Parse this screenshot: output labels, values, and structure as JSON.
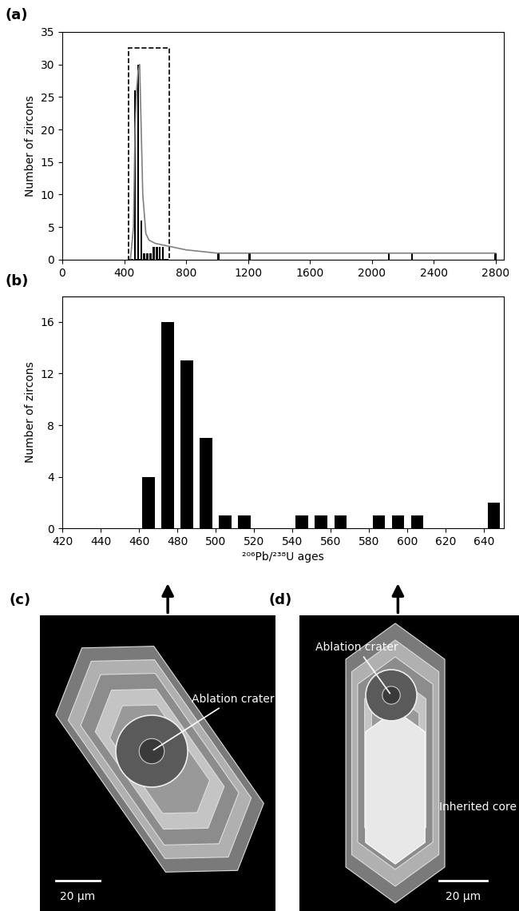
{
  "chart_data": [
    {
      "type": "bar",
      "panel_label": "(a)",
      "ylabel": "Number of zircons",
      "x": [
        470,
        490,
        510,
        530,
        550,
        570,
        590,
        610,
        630,
        650,
        1010,
        1210,
        2110,
        2260,
        2800
      ],
      "values": [
        26,
        30,
        6,
        1,
        1,
        1,
        2,
        2,
        2,
        2,
        1,
        1,
        1,
        1,
        1
      ],
      "color": "#000000",
      "curve": {
        "x": [
          440,
          460,
          470,
          480,
          490,
          500,
          510,
          520,
          540,
          560,
          600,
          700,
          800,
          1000,
          1200,
          1600,
          2000,
          2400,
          2800
        ],
        "values": [
          0,
          5,
          20,
          26,
          29,
          30,
          20,
          10,
          4,
          3,
          2.5,
          2,
          1.5,
          1,
          1,
          1,
          1,
          1,
          1
        ],
        "color": "#808080",
        "line_style": "solid"
      },
      "zoom_box": {
        "x": [
          430,
          690
        ],
        "y": [
          0,
          32.5
        ],
        "line_style": "dashed"
      },
      "xlim": [
        0,
        2850
      ],
      "ylim": [
        0,
        35
      ],
      "xticks": [
        0,
        400,
        800,
        1200,
        1600,
        2000,
        2400,
        2800
      ],
      "yticks": [
        0,
        5,
        10,
        15,
        20,
        25,
        30,
        35
      ]
    },
    {
      "type": "histogram",
      "panel_label": "(b)",
      "ylabel": "Number of zircons",
      "xlabel": "²⁰⁶Pb/²³⁸U ages",
      "bins": [
        460,
        470,
        480,
        490,
        500,
        510,
        520,
        530,
        540,
        550,
        560,
        570,
        580,
        590,
        600,
        610,
        620,
        630,
        640,
        650
      ],
      "counts": [
        4,
        16,
        13,
        7,
        1,
        1,
        0,
        0,
        1,
        1,
        1,
        0,
        1,
        1,
        1,
        0,
        0,
        0,
        2
      ],
      "color": "#000000",
      "xlim": [
        420,
        650
      ],
      "ylim": [
        0,
        18
      ],
      "xticks": [
        420,
        440,
        460,
        480,
        500,
        520,
        540,
        560,
        580,
        600,
        620,
        640
      ],
      "yticks": [
        0,
        4,
        8,
        12,
        16
      ]
    }
  ],
  "images": [
    {
      "panel_label": "(c)",
      "crater_label": "Ablation crater",
      "scale_bar": "20 μm",
      "arrow_age": 475
    },
    {
      "panel_label": "(d)",
      "crater_label": "Ablation crater",
      "core_label": "Inherited core",
      "scale_bar": "20 μm",
      "arrow_age": 595
    }
  ]
}
